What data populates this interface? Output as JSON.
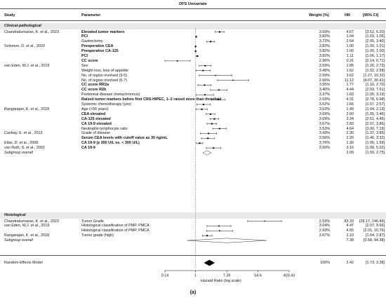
{
  "title": "DFS Univariate",
  "headers": {
    "study": "Study",
    "parameter": "Parameter",
    "weight": "Weight (%)",
    "hr": "HR",
    "ci": "[95% CI]"
  },
  "caption": "(a)",
  "chart_data": {
    "type": "forest",
    "x_scale": "log",
    "xlabel": "Hazard Ratio (log scale)",
    "xticks": [
      "0.14",
      "1",
      "7.39",
      "54.6",
      "403.43"
    ],
    "xtick_values": [
      0.14,
      1,
      7.39,
      54.6,
      403.43
    ],
    "reference_line": 1,
    "sections": [
      {
        "heading": "Clinical-pathological",
        "rows": [
          {
            "study": "Chandrakumaran, K. et al., 2023",
            "parameter": "Elevated tumor markers",
            "bold": true,
            "weight": "3.69%",
            "hr": 4.67,
            "hr_text": "4.67",
            "ci_text": "[3.52, 6.20]",
            "lo": 3.52,
            "hi": 6.2
          },
          {
            "study": "",
            "parameter": "PCI",
            "bold": true,
            "weight": "3.82%",
            "hr": 1.04,
            "hr_text": "1.04",
            "ci_text": "[1.03, 1.05]",
            "lo": 1.03,
            "hi": 1.05
          },
          {
            "study": "",
            "parameter": "Gastrectomy",
            "bold": false,
            "weight": "3.72%",
            "hr": 2.64,
            "hr_text": "2.64",
            "ci_text": "[2.05, 3.40]",
            "lo": 2.05,
            "hi": 3.4
          },
          {
            "study": "Solomon, D. et al., 2020",
            "parameter": "Preoperative CEA",
            "bold": true,
            "weight": "3.82%",
            "hr": 1.0,
            "hr_text": "1.00",
            "ci_text": "[1.00, 1.01]",
            "lo": 1.0,
            "hi": 1.01
          },
          {
            "study": "",
            "parameter": "Preoperative CA-125",
            "bold": true,
            "weight": "3.82%",
            "hr": 1.0,
            "hr_text": "1.00",
            "ci_text": "[1.00, 1.00]",
            "lo": 1.0,
            "hi": 1.0
          },
          {
            "study": "",
            "parameter": "PCI",
            "bold": true,
            "weight": "3.82%",
            "hr": 1.11,
            "hr_text": "1.11",
            "ci_text": "[1.06, 1.17]",
            "lo": 1.06,
            "hi": 1.17
          },
          {
            "study": "",
            "parameter": "CC score",
            "bold": true,
            "weight": "2.96%",
            "hr": 0.31,
            "hr_text": "0.31",
            "ci_text": "[0.14, 0.71]",
            "lo": 0.14,
            "hi": 0.71
          },
          {
            "study": "van Eden, W.J. et al., 2019",
            "parameter": "Sex",
            "bold": false,
            "weight": "3.59%",
            "hr": 1.85,
            "hr_text": "1.85",
            "ci_text": "[1.26, 2.72]",
            "lo": 1.26,
            "hi": 2.72
          },
          {
            "study": "",
            "parameter": "Weight loss, loss of appetite",
            "bold": false,
            "weight": "3.49%",
            "hr": 1.62,
            "hr_text": "1.62",
            "ci_text": "[1.02, 2.58]",
            "lo": 1.02,
            "hi": 2.58
          },
          {
            "study": "",
            "parameter": "No. of region involved (3-5)",
            "bold": false,
            "weight": "2.59%",
            "hr": 3.62,
            "hr_text": "3.62",
            "ci_text": "[1.27, 10.32]",
            "lo": 1.27,
            "hi": 10.32
          },
          {
            "study": "",
            "parameter": "No. of region involved (6-7)",
            "bold": false,
            "weight": "2.66%",
            "hr": 11.12,
            "hr_text": "11.12",
            "ci_text": "[4.07, 30.41]",
            "lo": 4.07,
            "hi": 30.41
          },
          {
            "study": "",
            "parameter": "CC score RR2a",
            "bold": true,
            "weight": "3.55%",
            "hr": 1.77,
            "hr_text": "1.77",
            "ci_text": "[1.16, 2.70]",
            "lo": 1.16,
            "hi": 2.7
          },
          {
            "study": "",
            "parameter": "CC score R2b",
            "bold": true,
            "weight": "3.40%",
            "hr": 4.44,
            "hr_text": "4.44",
            "ci_text": "[2.59, 7.61]",
            "lo": 2.59,
            "hi": 7.61
          },
          {
            "study": "",
            "parameter": "Peritoneal disease (metachronous)",
            "bold": false,
            "weight": "3.37%",
            "hr": 1.83,
            "hr_text": "1.83",
            "ci_text": "[1.05, 3.19]",
            "lo": 1.05,
            "hi": 3.19
          },
          {
            "study": "",
            "parameter": "Raised tumor markers before first CRS-HIPEC, 1–2 raised more than threefold",
            "bold": true,
            "weight": "3.53%",
            "hr": 4.31,
            "hr_text": "4.31",
            "ci_text": "[2.78, 6.68]",
            "lo": 2.78,
            "hi": 6.68
          },
          {
            "study": "",
            "parameter": "Systemic chemotherapy (yes)",
            "bold": false,
            "weight": "3.52%",
            "hr": 1.66,
            "hr_text": "1.66",
            "ci_text": "[1.07, 2.57]",
            "lo": 1.07,
            "hi": 2.57
          },
          {
            "study": "Rangarajan, K. et al., 2018",
            "parameter": "Age (<56 years)",
            "bold": false,
            "weight": "3.63%",
            "hr": 1.49,
            "hr_text": "1.49",
            "ci_text": "[1.04, 2.13]",
            "lo": 1.04,
            "hi": 2.13
          },
          {
            "study": "",
            "parameter": "CEA elevated",
            "bold": true,
            "weight": "3.69%",
            "hr": 2.6,
            "hr_text": "2.60",
            "ci_text": "[1.95, 3.46]",
            "lo": 1.95,
            "hi": 3.46
          },
          {
            "study": "",
            "parameter": "CA-125 elevated",
            "bold": true,
            "weight": "3.69%",
            "hr": 3.34,
            "hr_text": "3.34",
            "ci_text": "[2.51, 4.45]",
            "lo": 2.51,
            "hi": 4.45
          },
          {
            "study": "",
            "parameter": "CA 19-9 elevated",
            "bold": true,
            "weight": "3.67%",
            "hr": 2.83,
            "hr_text": "2.83",
            "ci_text": "[2.07, 3.86]",
            "lo": 2.07,
            "hi": 3.86
          },
          {
            "study": "",
            "parameter": "Neutrophil-lymphocyte ratio",
            "bold": false,
            "weight": "3.53%",
            "hr": 4.64,
            "hr_text": "4.64",
            "ci_text": "[3.00, 7.19]",
            "lo": 3.0,
            "hi": 7.19
          },
          {
            "study": "Canbay, E. et al., 2013",
            "parameter": "Grade of disease",
            "bold": false,
            "weight": "3.43%",
            "hr": 2.3,
            "hr_text": "2.30",
            "ci_text": "[1.37, 3.85]",
            "lo": 1.37,
            "hi": 3.85
          },
          {
            "study": "",
            "parameter": "Serum CEA levels with cutoff value as 30 ng/mL",
            "bold": true,
            "weight": "3.56%",
            "hr": 2.2,
            "hr_text": "2.20",
            "ci_text": "[1.46, 3.32]",
            "lo": 1.46,
            "hi": 3.32
          },
          {
            "study": "Elias, D. et al., 2008",
            "parameter": "CA 19-9 (≥ 300 U/L vs. < 300 U/L)",
            "bold": true,
            "weight": "3.76%",
            "hr": 1.3,
            "hr_text": "1.30",
            "ci_text": "[1.06, 1.59]",
            "lo": 1.06,
            "hi": 1.59
          },
          {
            "study": "van Ruth, S. et al., 2002",
            "parameter": "CA 19-9",
            "bold": true,
            "weight": "3.50%",
            "hr": 3.16,
            "hr_text": "3.16",
            "ci_text": "[1.99, 5.02]",
            "lo": 1.99,
            "hi": 5.02
          }
        ],
        "overall": {
          "label": "Subgroup overall",
          "hr": 2.09,
          "hr_text": "2.09",
          "ci_text": "[1.59, 2.75]",
          "lo": 1.59,
          "hi": 2.75
        }
      },
      {
        "heading": "Histological",
        "rows": [
          {
            "study": "Chandrakumaran, K. et al., 2023",
            "parameter": "Tumor Grade",
            "bold": false,
            "weight": "2.53%",
            "hr": 83.33,
            "hr_text": "83.33",
            "ci_text": "[28.17, 246.49]",
            "lo": 28.17,
            "hi": 246.49
          },
          {
            "study": "van Eden, W.J. et al., 2019",
            "parameter": "Histological classification of PMP, PMCA",
            "bold": false,
            "weight": "3.04%",
            "hr": 4.47,
            "hr_text": "4.47",
            "ci_text": "[2.07, 9.66]",
            "lo": 2.07,
            "hi": 9.66
          },
          {
            "study": "",
            "parameter": "Histological classification of PMP, PMCA",
            "bold": false,
            "weight": "2.93%",
            "hr": 4.65,
            "hr_text": "4.65",
            "ci_text": "[2.01, 10.76]",
            "lo": 2.01,
            "hi": 10.76
          },
          {
            "study": "Rangarajan, K. et al., 2018",
            "parameter": "Tumor grade (high)",
            "bold": false,
            "weight": "3.67%",
            "hr": 2.1,
            "hr_text": "2.10",
            "ci_text": "[1.54, 2.87]",
            "lo": 1.54,
            "hi": 2.87
          }
        ],
        "overall": {
          "label": "Subgroup overall",
          "hr": 7.38,
          "hr_text": "7.38",
          "ci_text": "[0.58, 94.38]",
          "lo": 0.58,
          "hi": 94.38
        }
      }
    ],
    "total": {
      "label": "Random-Effects Model",
      "weight": "100%",
      "hr": 2.42,
      "hr_text": "2.42",
      "ci_text": "[1.73, 3.38]",
      "lo": 1.73,
      "hi": 3.38
    }
  }
}
